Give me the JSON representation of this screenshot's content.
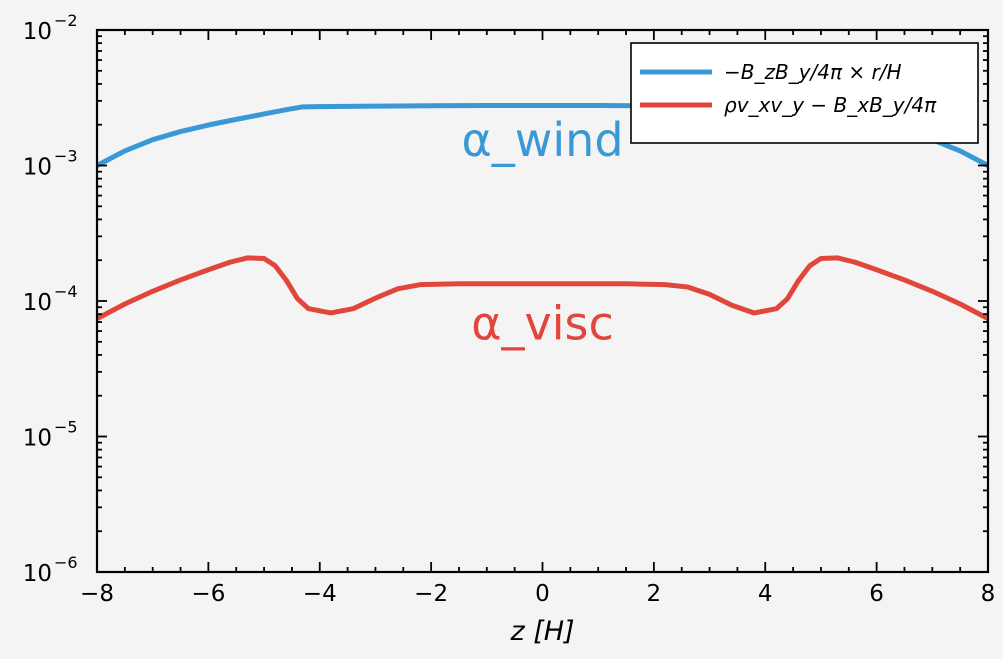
{
  "chart_data": {
    "type": "line",
    "xlabel": "z [H]",
    "ylabel": "",
    "xlim": [
      -8,
      8
    ],
    "ylim": [
      1e-06,
      0.01
    ],
    "yscale": "log",
    "grid": false,
    "legend_position": "top-right",
    "x_ticks": [
      {
        "value": -8,
        "label": "−8"
      },
      {
        "value": -6,
        "label": "−6"
      },
      {
        "value": -4,
        "label": "−4"
      },
      {
        "value": -2,
        "label": "−2"
      },
      {
        "value": 0,
        "label": "0"
      },
      {
        "value": 2,
        "label": "2"
      },
      {
        "value": 4,
        "label": "4"
      },
      {
        "value": 6,
        "label": "6"
      },
      {
        "value": 8,
        "label": "8"
      }
    ],
    "y_ticks": [
      {
        "value": 1e-06,
        "base": "10",
        "exp": "−6"
      },
      {
        "value": 1e-05,
        "base": "10",
        "exp": "−5"
      },
      {
        "value": 0.0001,
        "base": "10",
        "exp": "−4"
      },
      {
        "value": 0.001,
        "base": "10",
        "exp": "−3"
      },
      {
        "value": 0.01,
        "base": "10",
        "exp": "−2"
      }
    ],
    "series": [
      {
        "name": "−B_zB_y/4π × r/H",
        "color": "#3a98d6",
        "points": [
          [
            -8,
            0.001
          ],
          [
            -7.5,
            0.00128
          ],
          [
            -7,
            0.00155
          ],
          [
            -6.5,
            0.00178
          ],
          [
            -6,
            0.00199
          ],
          [
            -5.5,
            0.00219
          ],
          [
            -5,
            0.0024
          ],
          [
            -4.6,
            0.00258
          ],
          [
            -4.3,
            0.00271
          ],
          [
            -4,
            0.00272
          ],
          [
            -3,
            0.00274
          ],
          [
            -2,
            0.00276
          ],
          [
            -1,
            0.00277
          ],
          [
            0,
            0.00277
          ],
          [
            1,
            0.00277
          ],
          [
            2,
            0.00276
          ],
          [
            3,
            0.00274
          ],
          [
            4,
            0.00272
          ],
          [
            4.3,
            0.00271
          ],
          [
            4.6,
            0.00258
          ],
          [
            5,
            0.0024
          ],
          [
            5.5,
            0.00219
          ],
          [
            6,
            0.00199
          ],
          [
            6.5,
            0.00178
          ],
          [
            7,
            0.00155
          ],
          [
            7.5,
            0.00128
          ],
          [
            8,
            0.001
          ]
        ]
      },
      {
        "name": "ρv_xv_y − B_xB_y/4π",
        "color": "#e0463c",
        "points": [
          [
            -8,
            7.41e-05
          ],
          [
            -7.5,
            9.5e-05
          ],
          [
            -7,
            0.000118
          ],
          [
            -6.5,
            0.000143
          ],
          [
            -6,
            0.00017
          ],
          [
            -5.6,
            0.000194
          ],
          [
            -5.3,
            0.000208
          ],
          [
            -5.0,
            0.000206
          ],
          [
            -4.8,
            0.000182
          ],
          [
            -4.6,
            0.000142
          ],
          [
            -4.4,
            0.000104
          ],
          [
            -4.2,
            8.77e-05
          ],
          [
            -3.8,
            8.16e-05
          ],
          [
            -3.4,
            8.77e-05
          ],
          [
            -3,
            0.000105
          ],
          [
            -2.6,
            0.000123
          ],
          [
            -2.2,
            0.000132
          ],
          [
            -1.5,
            0.000134
          ],
          [
            -0.5,
            0.000134
          ],
          [
            0.5,
            0.000134
          ],
          [
            1.5,
            0.000134
          ],
          [
            2.2,
            0.000132
          ],
          [
            2.6,
            0.000127
          ],
          [
            3,
            0.000112
          ],
          [
            3.4,
            9.3e-05
          ],
          [
            3.8,
            8.16e-05
          ],
          [
            4.2,
            8.77e-05
          ],
          [
            4.4,
            0.000104
          ],
          [
            4.6,
            0.000142
          ],
          [
            4.8,
            0.000182
          ],
          [
            5.0,
            0.000206
          ],
          [
            5.3,
            0.000208
          ],
          [
            5.6,
            0.000194
          ],
          [
            6,
            0.00017
          ],
          [
            6.5,
            0.000143
          ],
          [
            7,
            0.000118
          ],
          [
            7.5,
            9.5e-05
          ],
          [
            8,
            7.41e-05
          ]
        ]
      }
    ],
    "legend": [
      {
        "text": "−B_zB_y/4π × r/H",
        "color": "#3a98d6"
      },
      {
        "text": "ρv_xv_y − B_xB_y/4π",
        "color": "#e0463c"
      }
    ],
    "annotations": [
      {
        "text": "α_wind",
        "x": 0,
        "y": 0.00118,
        "color": "#3a98d6"
      },
      {
        "text": "α_visc",
        "x": 0,
        "y": 5.2e-05,
        "color": "#e0463c"
      }
    ]
  }
}
